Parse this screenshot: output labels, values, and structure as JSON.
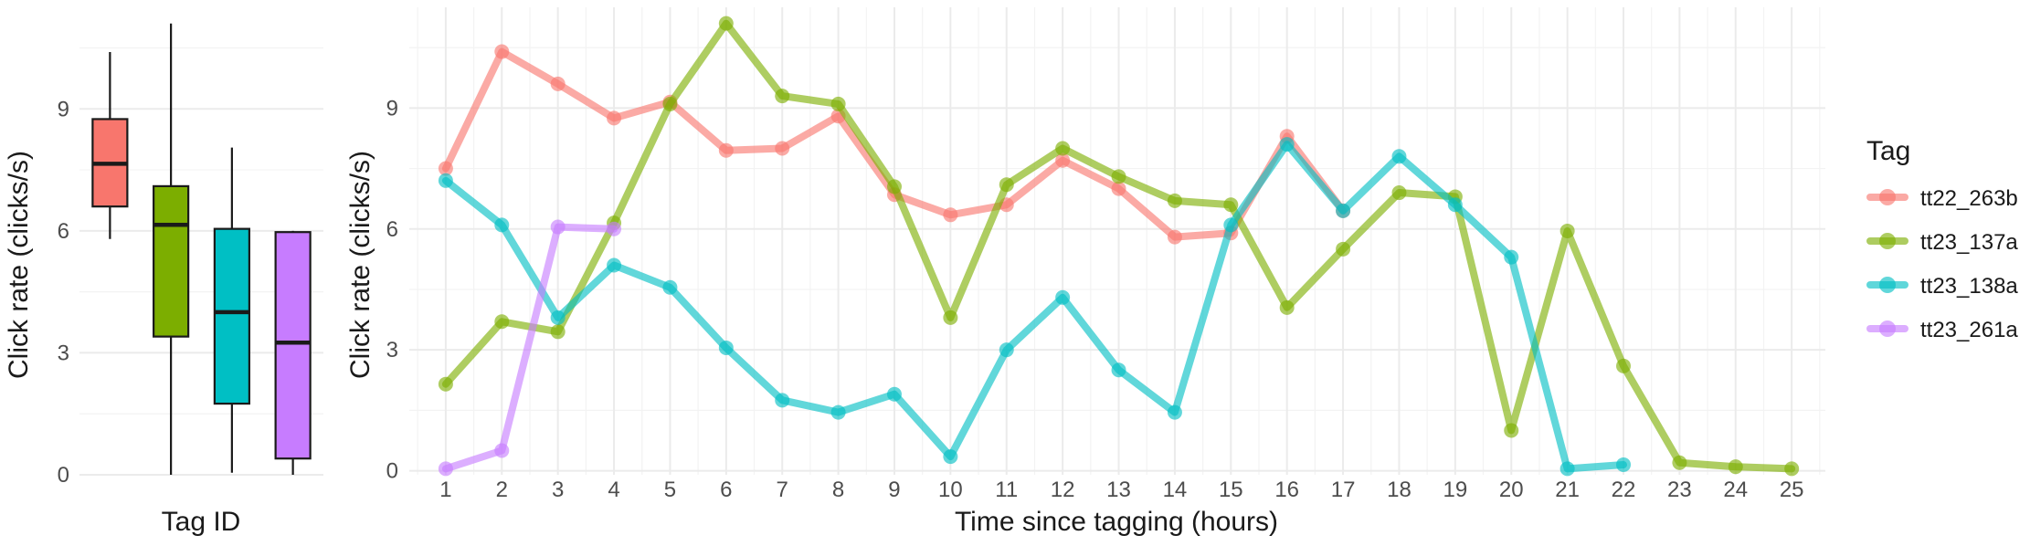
{
  "chart_data": [
    {
      "type": "box",
      "xlabel": "Tag ID",
      "ylabel": "Click rate (clicks/s)",
      "ylim": [
        0,
        11.5
      ],
      "yticks": [
        0,
        3,
        6,
        9
      ],
      "grid": true,
      "boxes": [
        {
          "color": "#F8766D",
          "whisker_low": 5.8,
          "q1": 6.6,
          "median": 7.65,
          "q3": 8.75,
          "whisker_high": 10.4
        },
        {
          "color": "#7CAE00",
          "whisker_low": 0.0,
          "q1": 3.4,
          "median": 6.15,
          "q3": 7.1,
          "whisker_high": 11.1
        },
        {
          "color": "#00BFC4",
          "whisker_low": 0.05,
          "q1": 1.75,
          "median": 4.0,
          "q3": 6.05,
          "whisker_high": 8.05
        },
        {
          "color": "#C77CFF",
          "whisker_low": 0.0,
          "q1": 0.4,
          "median": 3.25,
          "q3": 5.97,
          "whisker_high": 6.0
        }
      ]
    },
    {
      "type": "line",
      "xlabel": "Time since tagging (hours)",
      "ylabel": "Click rate (clicks/s)",
      "xlim": [
        0.35,
        25.6
      ],
      "ylim": [
        -0.1,
        11.5
      ],
      "xticks": [
        1,
        2,
        3,
        4,
        5,
        6,
        7,
        8,
        9,
        10,
        11,
        12,
        13,
        14,
        15,
        16,
        17,
        18,
        19,
        20,
        21,
        22,
        23,
        24,
        25
      ],
      "yticks": [
        0,
        3,
        6,
        9
      ],
      "grid": true,
      "legend": {
        "title": "Tag",
        "position": "right"
      },
      "series": [
        {
          "name": "tt22_263b",
          "color": "#F8766D",
          "x": [
            1,
            2,
            3,
            4,
            5,
            6,
            7,
            8,
            9,
            10,
            11,
            12,
            13,
            14,
            15,
            16,
            17
          ],
          "y": [
            7.5,
            10.4,
            9.6,
            8.75,
            9.15,
            7.95,
            8.0,
            8.8,
            6.85,
            6.35,
            6.6,
            7.7,
            7.0,
            5.8,
            5.9,
            8.3,
            6.45
          ]
        },
        {
          "name": "tt23_137a",
          "color": "#7CAE00",
          "x": [
            1,
            2,
            3,
            4,
            5,
            6,
            7,
            8,
            9,
            10,
            11,
            12,
            13,
            14,
            15,
            16,
            17,
            18,
            19,
            20,
            21,
            22,
            23,
            24,
            25
          ],
          "y": [
            2.15,
            3.7,
            3.45,
            6.15,
            9.1,
            11.1,
            9.3,
            9.1,
            7.05,
            3.8,
            7.1,
            8.0,
            7.3,
            6.7,
            6.6,
            4.05,
            5.5,
            6.9,
            6.8,
            1.0,
            5.95,
            2.6,
            0.2,
            0.1,
            0.05
          ]
        },
        {
          "name": "tt23_138a",
          "color": "#00BFC4",
          "x": [
            1,
            2,
            3,
            4,
            5,
            6,
            7,
            8,
            9,
            10,
            11,
            12,
            13,
            14,
            15,
            16,
            17,
            18,
            19,
            20,
            21,
            22
          ],
          "y": [
            7.2,
            6.1,
            3.8,
            5.1,
            4.55,
            3.05,
            1.75,
            1.45,
            1.9,
            0.35,
            3.0,
            4.3,
            2.5,
            1.45,
            6.1,
            8.1,
            6.45,
            7.8,
            6.6,
            5.3,
            0.05,
            0.15
          ]
        },
        {
          "name": "tt23_261a",
          "color": "#C77CFF",
          "x": [
            1,
            2,
            3,
            4
          ],
          "y": [
            0.05,
            0.5,
            6.05,
            6.0
          ]
        }
      ]
    }
  ]
}
